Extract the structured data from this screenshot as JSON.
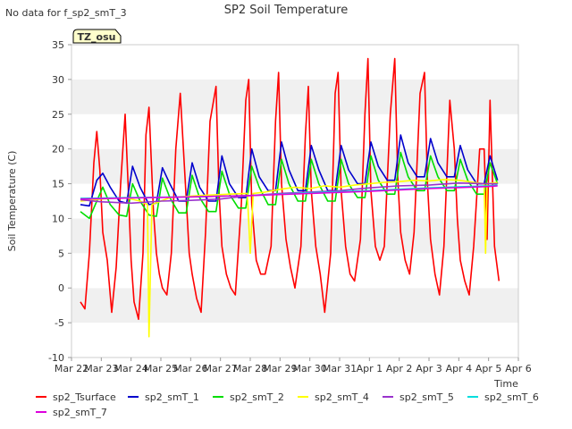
{
  "chart_data": {
    "type": "line",
    "title": "SP2 Soil Temperature",
    "note": "No data for f_sp2_smT_3",
    "tz_label": "TZ_osu",
    "xlabel": "Time",
    "ylabel": "Soil Temperature (C)",
    "ylim": [
      -10,
      35
    ],
    "yticks": [
      -10,
      -5,
      0,
      5,
      10,
      15,
      20,
      25,
      30,
      35
    ],
    "xlim": [
      0,
      15
    ],
    "xticks": [
      {
        "pos": 0,
        "label": "Mar 22"
      },
      {
        "pos": 1,
        "label": "Mar 23"
      },
      {
        "pos": 2,
        "label": "Mar 24"
      },
      {
        "pos": 3,
        "label": "Mar 25"
      },
      {
        "pos": 4,
        "label": "Mar 26"
      },
      {
        "pos": 5,
        "label": "Mar 27"
      },
      {
        "pos": 6,
        "label": "Mar 28"
      },
      {
        "pos": 7,
        "label": "Mar 29"
      },
      {
        "pos": 8,
        "label": "Mar 30"
      },
      {
        "pos": 9,
        "label": "Mar 31"
      },
      {
        "pos": 10,
        "label": "Apr 1"
      },
      {
        "pos": 11,
        "label": "Apr 2"
      },
      {
        "pos": 12,
        "label": "Apr 3"
      },
      {
        "pos": 13,
        "label": "Apr 4"
      },
      {
        "pos": 14,
        "label": "Apr 5"
      },
      {
        "pos": 15,
        "label": "Apr 6"
      }
    ],
    "series": [
      {
        "name": "sp2_Tsurface",
        "color": "#ff0000",
        "x": [
          0.3,
          0.45,
          0.6,
          0.75,
          0.85,
          0.95,
          1.05,
          1.2,
          1.35,
          1.5,
          1.65,
          1.8,
          1.9,
          2.0,
          2.1,
          2.25,
          2.4,
          2.5,
          2.6,
          2.75,
          2.85,
          2.95,
          3.05,
          3.2,
          3.35,
          3.5,
          3.65,
          3.85,
          3.95,
          4.05,
          4.2,
          4.35,
          4.5,
          4.65,
          4.85,
          4.95,
          5.05,
          5.2,
          5.35,
          5.5,
          5.7,
          5.85,
          5.95,
          6.05,
          6.2,
          6.35,
          6.5,
          6.7,
          6.85,
          6.95,
          7.05,
          7.2,
          7.35,
          7.5,
          7.7,
          7.85,
          7.95,
          8.05,
          8.2,
          8.35,
          8.5,
          8.7,
          8.85,
          8.95,
          9.05,
          9.2,
          9.35,
          9.5,
          9.7,
          9.85,
          9.95,
          10.05,
          10.2,
          10.35,
          10.5,
          10.7,
          10.85,
          10.95,
          11.05,
          11.2,
          11.35,
          11.5,
          11.7,
          11.85,
          11.95,
          12.05,
          12.2,
          12.35,
          12.5,
          12.7,
          12.85,
          12.95,
          13.05,
          13.2,
          13.35,
          13.5,
          13.7,
          13.85,
          13.95,
          14.05,
          14.2,
          14.35
        ],
        "y": [
          -2,
          -3,
          5,
          18,
          22.5,
          17,
          8,
          4,
          -3.5,
          3,
          15,
          25,
          15,
          4,
          -2,
          -4.5,
          5,
          22,
          26,
          11,
          5,
          2,
          0,
          -1,
          5,
          20,
          28,
          13,
          5,
          2,
          -1.5,
          -3.5,
          8,
          24,
          29,
          14,
          6,
          2,
          0,
          -1,
          12,
          27,
          30,
          12,
          4,
          2,
          2,
          6,
          24,
          31,
          15,
          7,
          3,
          0,
          6,
          22,
          29,
          14,
          6,
          2,
          -3.5,
          5,
          28,
          31,
          14,
          6,
          2,
          1,
          7,
          25,
          33,
          14,
          6,
          4,
          6,
          25,
          33,
          16,
          8,
          4,
          2,
          8,
          28,
          31,
          15,
          7,
          2,
          -1,
          6,
          27,
          20,
          10,
          4,
          1,
          -1,
          6,
          20,
          20,
          7,
          27,
          6,
          1
        ]
      },
      {
        "name": "sp2_smT_1",
        "color": "#0000cc",
        "x": [
          0.3,
          0.6,
          0.85,
          1.05,
          1.3,
          1.6,
          1.85,
          2.05,
          2.3,
          2.6,
          2.85,
          3.05,
          3.3,
          3.6,
          3.85,
          4.05,
          4.3,
          4.6,
          4.85,
          5.05,
          5.3,
          5.6,
          5.85,
          6.05,
          6.3,
          6.6,
          6.85,
          7.05,
          7.3,
          7.6,
          7.85,
          8.05,
          8.3,
          8.6,
          8.85,
          9.05,
          9.3,
          9.6,
          9.85,
          10.05,
          10.3,
          10.6,
          10.85,
          11.05,
          11.3,
          11.6,
          11.85,
          12.05,
          12.3,
          12.6,
          12.85,
          13.05,
          13.3,
          13.6,
          13.85,
          14.05,
          14.3
        ],
        "y": [
          12,
          11.8,
          15.5,
          16.5,
          14.5,
          12.5,
          12.2,
          17.5,
          14.5,
          12,
          12.2,
          17.3,
          15,
          12.5,
          12.5,
          18,
          14.5,
          12.5,
          12.5,
          19,
          15,
          13,
          13,
          20,
          16,
          14,
          14,
          21,
          17,
          14,
          14,
          20.5,
          17,
          14,
          14,
          20.5,
          17,
          15,
          15,
          21,
          17.5,
          15.5,
          15.5,
          22,
          18,
          16,
          16,
          21.5,
          18,
          16,
          16,
          20.5,
          17,
          15,
          15,
          19,
          15.5
        ]
      },
      {
        "name": "sp2_smT_2",
        "color": "#00dd00",
        "x": [
          0.3,
          0.6,
          0.85,
          1.05,
          1.3,
          1.6,
          1.85,
          2.05,
          2.3,
          2.6,
          2.85,
          3.05,
          3.3,
          3.6,
          3.85,
          4.05,
          4.3,
          4.6,
          4.85,
          5.05,
          5.3,
          5.6,
          5.85,
          6.05,
          6.3,
          6.6,
          6.85,
          7.05,
          7.3,
          7.6,
          7.85,
          8.05,
          8.3,
          8.6,
          8.85,
          9.05,
          9.3,
          9.6,
          9.85,
          10.05,
          10.3,
          10.6,
          10.85,
          11.05,
          11.3,
          11.6,
          11.85,
          12.05,
          12.3,
          12.6,
          12.85,
          13.05,
          13.3,
          13.6,
          13.85,
          14.05,
          14.3
        ],
        "y": [
          11,
          10,
          12.5,
          14.5,
          12,
          10.5,
          10.3,
          15,
          12.5,
          10.5,
          10.3,
          15.8,
          13,
          10.8,
          10.8,
          16.2,
          13,
          11,
          11,
          16.8,
          13.5,
          11.5,
          11.5,
          17.5,
          14.5,
          12,
          12,
          18.5,
          15,
          12.5,
          12.5,
          18.5,
          15,
          12.5,
          12.5,
          18.5,
          15,
          13,
          13,
          19,
          15.5,
          13.5,
          13.5,
          19.5,
          16,
          14,
          14,
          19,
          16,
          14,
          14,
          18.5,
          15.5,
          13.5,
          13.5,
          18,
          15
        ]
      },
      {
        "name": "sp2_smT_4",
        "color": "#ffff00",
        "x": [
          0.3,
          1.0,
          1.8,
          2.3,
          2.55,
          2.6,
          2.7,
          3.3,
          4.3,
          5.3,
          5.9,
          6.0,
          6.1,
          6.5,
          7.0,
          7.5,
          8.0,
          8.5,
          9.0,
          9.5,
          10.0,
          10.5,
          11.0,
          11.5,
          12.0,
          12.5,
          13.0,
          13.5,
          13.85,
          13.9,
          13.95,
          14.3
        ],
        "y": [
          12.5,
          12.8,
          13,
          12.5,
          12,
          -7,
          12,
          13,
          13.3,
          13.5,
          13.6,
          5,
          13.6,
          13.8,
          14.2,
          14.5,
          14.3,
          14.7,
          14.5,
          14.8,
          15,
          15.2,
          15.3,
          15.5,
          15.4,
          15.6,
          15.5,
          15.2,
          15,
          5,
          15,
          15.2
        ]
      },
      {
        "name": "sp2_smT_5",
        "color": "#9933cc",
        "x": [
          0.3,
          1.0,
          2.0,
          3.0,
          4.0,
          5.0,
          6.0,
          7.0,
          8.0,
          9.0,
          10.0,
          11.0,
          12.0,
          13.0,
          14.0,
          14.3
        ],
        "y": [
          12.7,
          12.4,
          12.2,
          12.5,
          12.6,
          12.8,
          13.3,
          13.6,
          13.8,
          14,
          14.4,
          14.7,
          14.8,
          15.1,
          15,
          15
        ]
      },
      {
        "name": "sp2_smT_6",
        "color": "#00dddd",
        "x": [
          0.3,
          2.0,
          4.0,
          6.0,
          8.0,
          10.0,
          12.0,
          14.0,
          14.3
        ],
        "y": [
          12.9,
          13,
          13.1,
          13.3,
          13.7,
          14,
          14.4,
          14.7,
          14.8
        ]
      },
      {
        "name": "sp2_smT_7",
        "color": "#dd00dd",
        "x": [
          0.3,
          2.0,
          4.0,
          6.0,
          8.0,
          10.0,
          12.0,
          14.0,
          14.3
        ],
        "y": [
          12.8,
          12.95,
          13.1,
          13.3,
          13.6,
          13.9,
          14.3,
          14.6,
          14.7
        ]
      }
    ]
  }
}
